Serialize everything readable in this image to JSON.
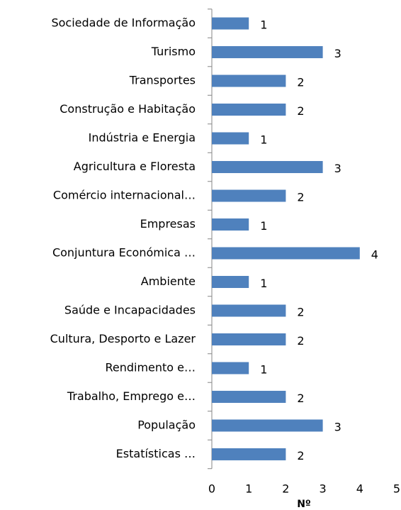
{
  "chart_data": {
    "type": "bar",
    "orientation": "horizontal",
    "categories": [
      "Sociedade de Informação",
      "Turismo",
      "Transportes",
      "Construção e Habitação",
      "Indústria e Energia",
      "Agricultura e Floresta",
      "Comércio internacional…",
      "Empresas",
      "Conjuntura Económica …",
      "Ambiente",
      "Saúde e Incapacidades",
      "Cultura, Desporto e Lazer",
      "Rendimento e…",
      "Trabalho, Emprego e…",
      "População",
      "Estatísticas …"
    ],
    "values": [
      1,
      3,
      2,
      2,
      1,
      3,
      2,
      1,
      4,
      1,
      2,
      2,
      1,
      2,
      3,
      2
    ],
    "color": "#4f81bd",
    "xlabel": "Nº",
    "xlim": [
      0,
      5
    ],
    "xticks": [
      0,
      1,
      2,
      3,
      4,
      5
    ],
    "grid": false
  }
}
